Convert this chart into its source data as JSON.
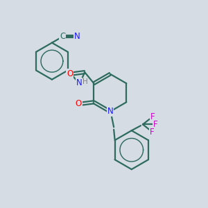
{
  "bg_color": "#d6dce4",
  "bond_color": "#2d6b5e",
  "bond_width": 1.6,
  "atom_colors": {
    "N": "#1a1aff",
    "O": "#ff0000",
    "F": "#cc00cc",
    "C_label": "#2d6b5e",
    "H": "#808080"
  },
  "font_size": 8.5
}
